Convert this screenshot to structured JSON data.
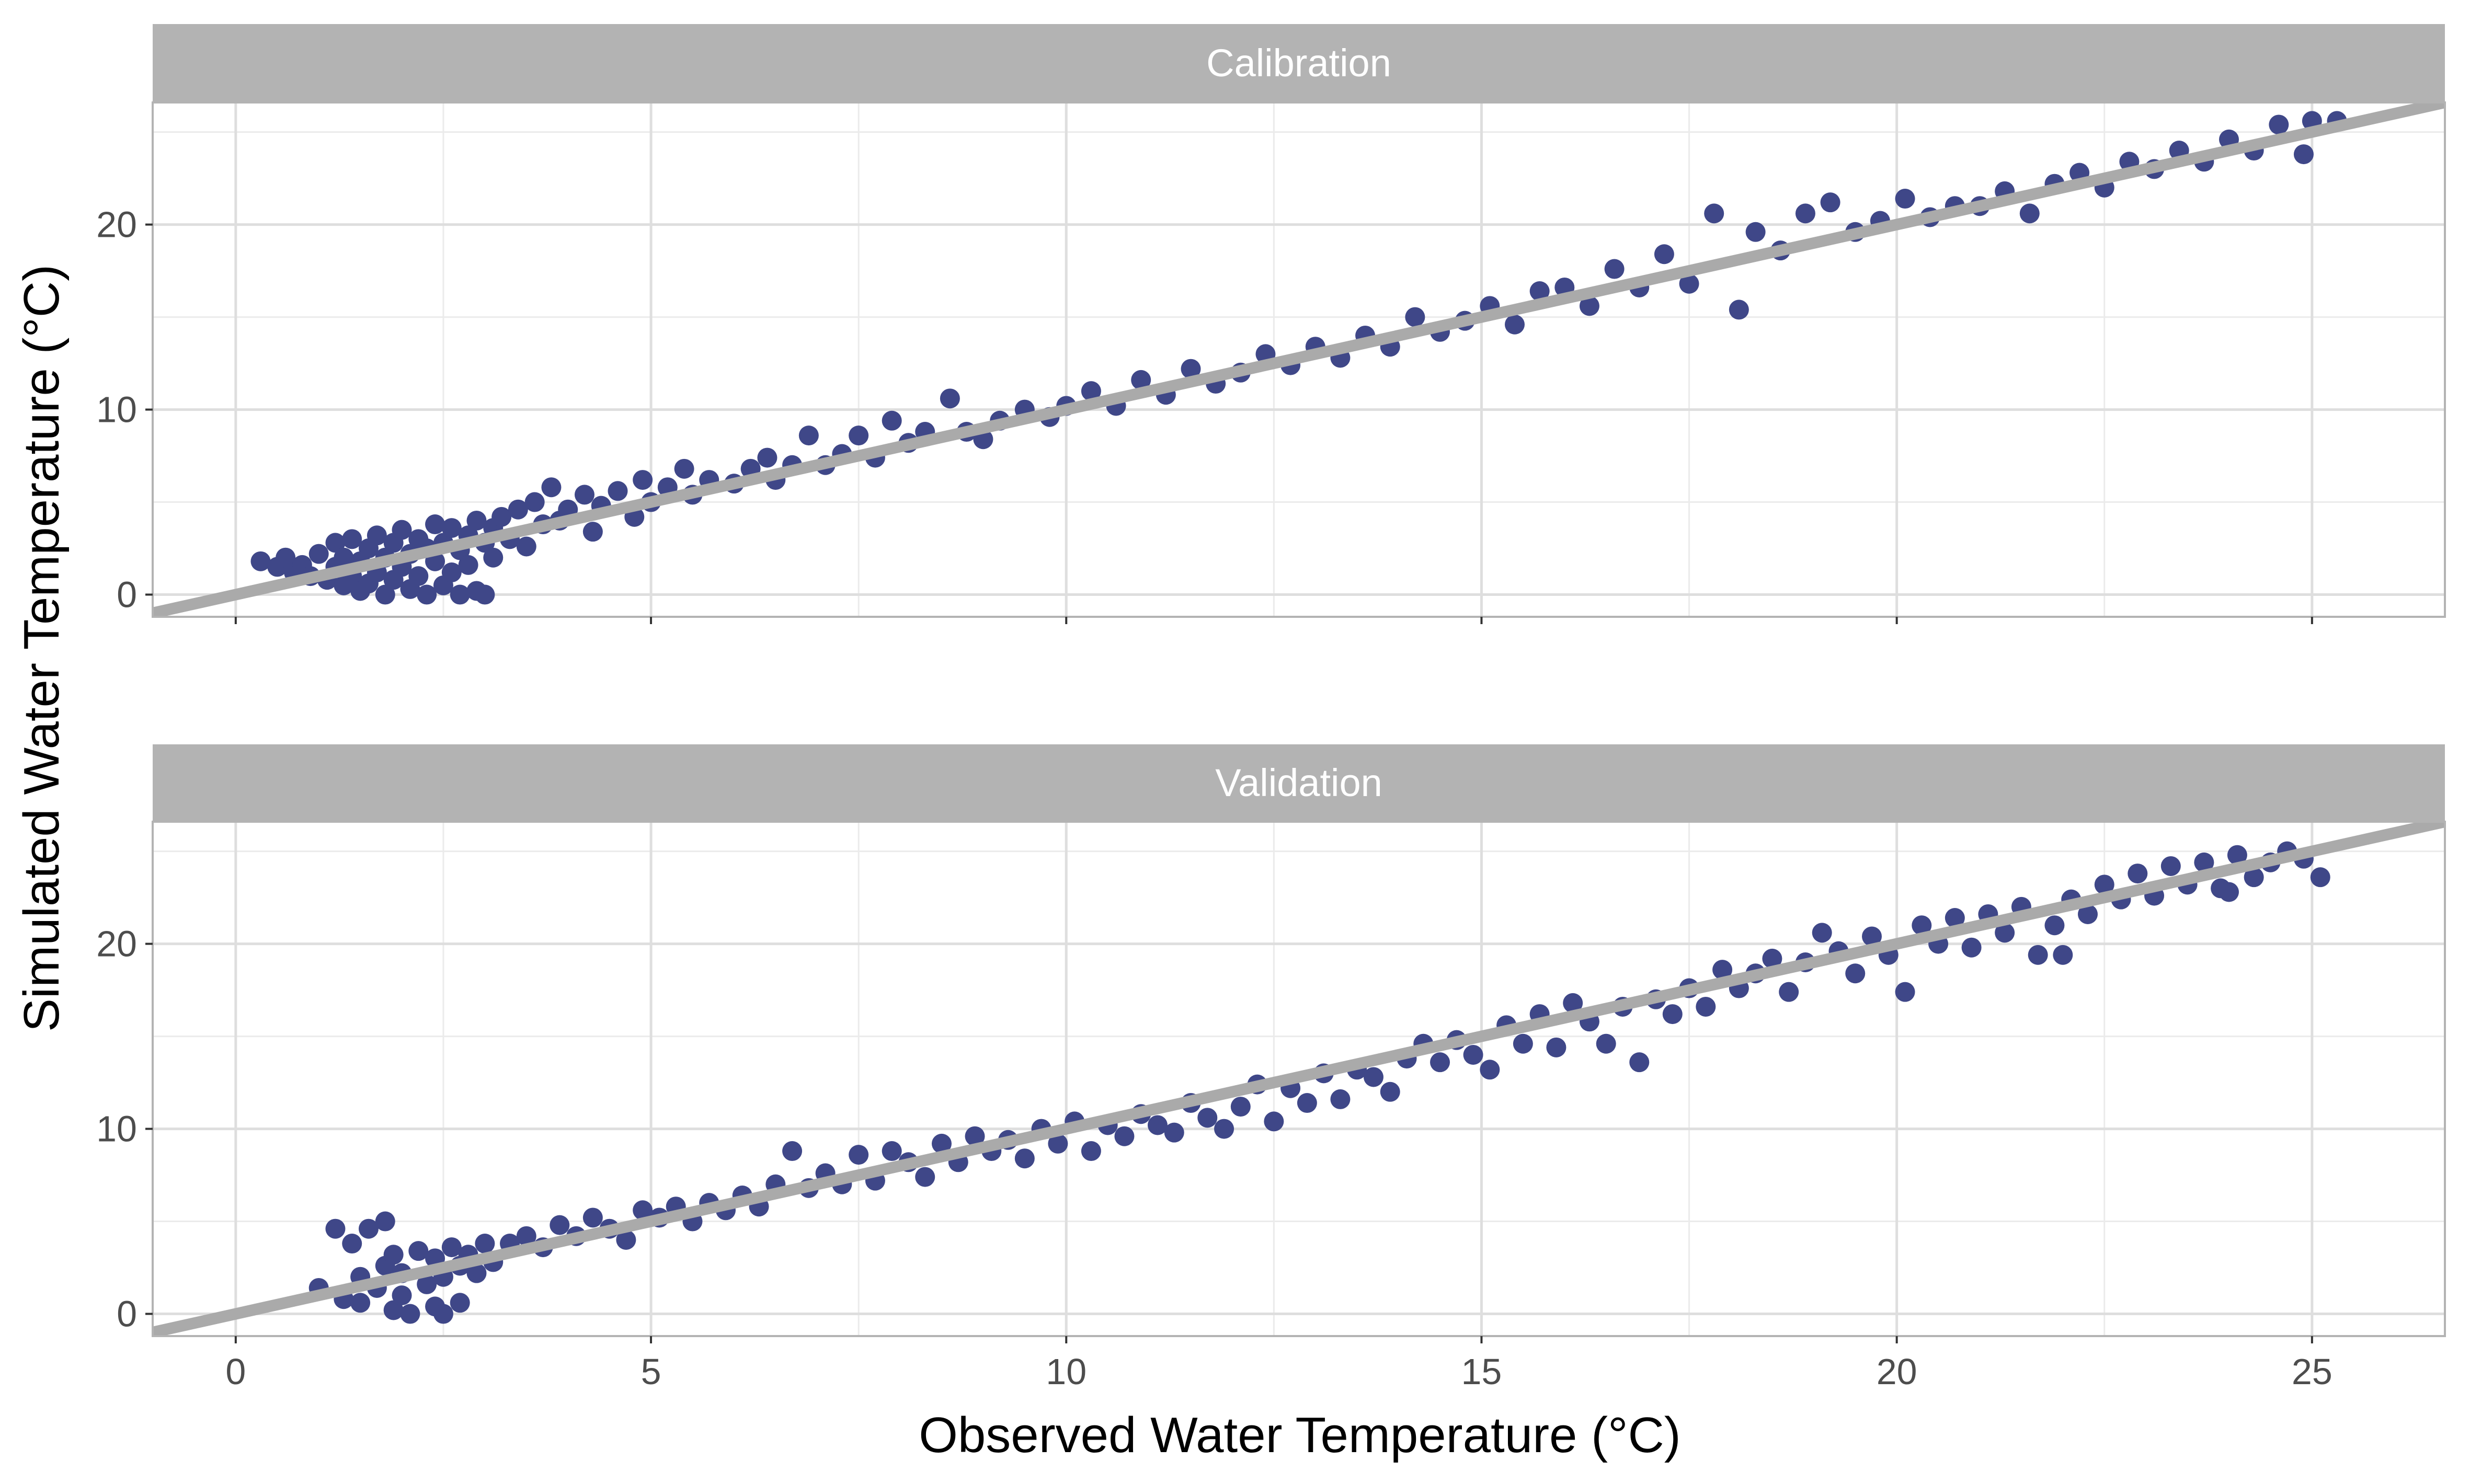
{
  "chart_data": {
    "type": "scatter",
    "xlabel": "Observed Water Temperature (°C)",
    "ylabel": "Simulated Water Temperature (°C)",
    "xlim": [
      -1,
      26.6
    ],
    "x_ticks": [
      0,
      5,
      10,
      15,
      20,
      25
    ],
    "y_ticks": [
      0,
      10,
      20
    ],
    "grid": true,
    "point_color": "#3F4788",
    "reference_line": {
      "slope": 1,
      "intercept": 0,
      "color": "#AAAAAA"
    },
    "strip_color": "#B3B3B3",
    "panels": [
      {
        "name": "Calibration",
        "ylim": [
          -1.2,
          26.6
        ],
        "points": [
          [
            0.3,
            1.8
          ],
          [
            0.5,
            1.5
          ],
          [
            0.6,
            2.0
          ],
          [
            0.7,
            1.2
          ],
          [
            0.8,
            1.6
          ],
          [
            0.9,
            1.0
          ],
          [
            1.0,
            2.2
          ],
          [
            1.1,
            0.8
          ],
          [
            1.2,
            2.8
          ],
          [
            1.2,
            1.5
          ],
          [
            1.3,
            0.5
          ],
          [
            1.3,
            2.0
          ],
          [
            1.4,
            1.0
          ],
          [
            1.4,
            3.0
          ],
          [
            1.5,
            0.2
          ],
          [
            1.5,
            1.8
          ],
          [
            1.6,
            2.5
          ],
          [
            1.6,
            0.6
          ],
          [
            1.7,
            3.2
          ],
          [
            1.7,
            1.2
          ],
          [
            1.8,
            0.0
          ],
          [
            1.8,
            2.0
          ],
          [
            1.9,
            2.8
          ],
          [
            1.9,
            0.8
          ],
          [
            2.0,
            1.5
          ],
          [
            2.0,
            3.5
          ],
          [
            2.1,
            0.3
          ],
          [
            2.1,
            2.2
          ],
          [
            2.2,
            1.0
          ],
          [
            2.2,
            3.0
          ],
          [
            2.3,
            0.0
          ],
          [
            2.3,
            2.5
          ],
          [
            2.4,
            1.8
          ],
          [
            2.4,
            3.8
          ],
          [
            2.5,
            0.5
          ],
          [
            2.5,
            2.8
          ],
          [
            2.6,
            1.2
          ],
          [
            2.6,
            3.6
          ],
          [
            2.7,
            0.0
          ],
          [
            2.7,
            2.4
          ],
          [
            2.8,
            3.2
          ],
          [
            2.8,
            1.6
          ],
          [
            2.9,
            4.0
          ],
          [
            2.9,
            0.2
          ],
          [
            3.0,
            2.8
          ],
          [
            3.0,
            0.0
          ],
          [
            3.1,
            3.6
          ],
          [
            3.1,
            2.0
          ],
          [
            3.2,
            4.2
          ],
          [
            3.3,
            3.0
          ],
          [
            3.4,
            4.6
          ],
          [
            3.5,
            2.6
          ],
          [
            3.6,
            5.0
          ],
          [
            3.7,
            3.8
          ],
          [
            3.8,
            5.8
          ],
          [
            3.9,
            4.0
          ],
          [
            4.0,
            4.6
          ],
          [
            4.2,
            5.4
          ],
          [
            4.3,
            3.4
          ],
          [
            4.4,
            4.8
          ],
          [
            4.6,
            5.6
          ],
          [
            4.8,
            4.2
          ],
          [
            4.9,
            6.2
          ],
          [
            5.0,
            5.0
          ],
          [
            5.2,
            5.8
          ],
          [
            5.4,
            6.8
          ],
          [
            5.5,
            5.4
          ],
          [
            5.7,
            6.2
          ],
          [
            6.0,
            6.0
          ],
          [
            6.2,
            6.8
          ],
          [
            6.4,
            7.4
          ],
          [
            6.5,
            6.2
          ],
          [
            6.7,
            7.0
          ],
          [
            6.9,
            8.6
          ],
          [
            7.1,
            7.0
          ],
          [
            7.3,
            7.6
          ],
          [
            7.5,
            8.6
          ],
          [
            7.7,
            7.4
          ],
          [
            7.9,
            9.4
          ],
          [
            8.1,
            8.2
          ],
          [
            8.3,
            8.8
          ],
          [
            8.6,
            10.6
          ],
          [
            8.8,
            8.8
          ],
          [
            9.0,
            8.4
          ],
          [
            9.2,
            9.4
          ],
          [
            9.5,
            10.0
          ],
          [
            9.8,
            9.6
          ],
          [
            10.0,
            10.2
          ],
          [
            10.3,
            11.0
          ],
          [
            10.6,
            10.2
          ],
          [
            10.9,
            11.6
          ],
          [
            11.2,
            10.8
          ],
          [
            11.5,
            12.2
          ],
          [
            11.8,
            11.4
          ],
          [
            12.1,
            12.0
          ],
          [
            12.4,
            13.0
          ],
          [
            12.7,
            12.4
          ],
          [
            13.0,
            13.4
          ],
          [
            13.3,
            12.8
          ],
          [
            13.6,
            14.0
          ],
          [
            13.9,
            13.4
          ],
          [
            14.2,
            15.0
          ],
          [
            14.5,
            14.2
          ],
          [
            14.8,
            14.8
          ],
          [
            15.1,
            15.6
          ],
          [
            15.4,
            14.6
          ],
          [
            15.7,
            16.4
          ],
          [
            16.0,
            16.6
          ],
          [
            16.3,
            15.6
          ],
          [
            16.6,
            17.6
          ],
          [
            16.9,
            16.6
          ],
          [
            17.2,
            18.4
          ],
          [
            17.5,
            16.8
          ],
          [
            17.8,
            20.6
          ],
          [
            18.1,
            15.4
          ],
          [
            18.3,
            19.6
          ],
          [
            18.6,
            18.6
          ],
          [
            18.9,
            20.6
          ],
          [
            19.2,
            21.2
          ],
          [
            19.5,
            19.6
          ],
          [
            19.8,
            20.2
          ],
          [
            20.1,
            21.4
          ],
          [
            20.4,
            20.4
          ],
          [
            20.7,
            21.0
          ],
          [
            21.0,
            21.0
          ],
          [
            21.3,
            21.8
          ],
          [
            21.6,
            20.6
          ],
          [
            21.9,
            22.2
          ],
          [
            22.2,
            22.8
          ],
          [
            22.5,
            22.0
          ],
          [
            22.8,
            23.4
          ],
          [
            23.1,
            23.0
          ],
          [
            23.4,
            24.0
          ],
          [
            23.7,
            23.4
          ],
          [
            24.0,
            24.6
          ],
          [
            24.3,
            24.0
          ],
          [
            24.6,
            25.4
          ],
          [
            24.9,
            23.8
          ],
          [
            25.0,
            25.6
          ],
          [
            25.3,
            25.6
          ]
        ]
      },
      {
        "name": "Validation",
        "ylim": [
          -1.2,
          26.6
        ],
        "points": [
          [
            1.0,
            1.4
          ],
          [
            1.2,
            4.6
          ],
          [
            1.3,
            0.8
          ],
          [
            1.4,
            3.8
          ],
          [
            1.5,
            2.0
          ],
          [
            1.5,
            0.6
          ],
          [
            1.6,
            4.6
          ],
          [
            1.7,
            1.4
          ],
          [
            1.8,
            2.6
          ],
          [
            1.8,
            5.0
          ],
          [
            1.9,
            0.2
          ],
          [
            1.9,
            3.2
          ],
          [
            2.0,
            1.0
          ],
          [
            2.0,
            2.2
          ],
          [
            2.1,
            0.0
          ],
          [
            2.2,
            3.4
          ],
          [
            2.3,
            1.6
          ],
          [
            2.4,
            0.4
          ],
          [
            2.4,
            3.0
          ],
          [
            2.5,
            2.0
          ],
          [
            2.5,
            0.0
          ],
          [
            2.6,
            3.6
          ],
          [
            2.7,
            2.6
          ],
          [
            2.7,
            0.6
          ],
          [
            2.8,
            3.2
          ],
          [
            2.9,
            2.2
          ],
          [
            3.0,
            3.8
          ],
          [
            3.1,
            2.8
          ],
          [
            3.3,
            3.8
          ],
          [
            3.5,
            4.2
          ],
          [
            3.7,
            3.6
          ],
          [
            3.9,
            4.8
          ],
          [
            4.1,
            4.2
          ],
          [
            4.3,
            5.2
          ],
          [
            4.5,
            4.6
          ],
          [
            4.7,
            4.0
          ],
          [
            4.9,
            5.6
          ],
          [
            5.1,
            5.2
          ],
          [
            5.3,
            5.8
          ],
          [
            5.5,
            5.0
          ],
          [
            5.7,
            6.0
          ],
          [
            5.9,
            5.6
          ],
          [
            6.1,
            6.4
          ],
          [
            6.3,
            5.8
          ],
          [
            6.5,
            7.0
          ],
          [
            6.7,
            8.8
          ],
          [
            6.9,
            6.8
          ],
          [
            7.1,
            7.6
          ],
          [
            7.3,
            7.0
          ],
          [
            7.5,
            8.6
          ],
          [
            7.7,
            7.2
          ],
          [
            7.9,
            8.8
          ],
          [
            8.1,
            8.2
          ],
          [
            8.3,
            7.4
          ],
          [
            8.5,
            9.2
          ],
          [
            8.7,
            8.2
          ],
          [
            8.9,
            9.6
          ],
          [
            9.1,
            8.8
          ],
          [
            9.3,
            9.4
          ],
          [
            9.5,
            8.4
          ],
          [
            9.7,
            10.0
          ],
          [
            9.9,
            9.2
          ],
          [
            10.1,
            10.4
          ],
          [
            10.3,
            8.8
          ],
          [
            10.5,
            10.2
          ],
          [
            10.7,
            9.6
          ],
          [
            10.9,
            10.8
          ],
          [
            11.1,
            10.2
          ],
          [
            11.3,
            9.8
          ],
          [
            11.5,
            11.4
          ],
          [
            11.7,
            10.6
          ],
          [
            11.9,
            10.0
          ],
          [
            12.1,
            11.2
          ],
          [
            12.3,
            12.4
          ],
          [
            12.5,
            10.4
          ],
          [
            12.7,
            12.2
          ],
          [
            12.9,
            11.4
          ],
          [
            13.1,
            13.0
          ],
          [
            13.3,
            11.6
          ],
          [
            13.5,
            13.2
          ],
          [
            13.7,
            12.8
          ],
          [
            13.9,
            12.0
          ],
          [
            14.1,
            13.8
          ],
          [
            14.3,
            14.6
          ],
          [
            14.5,
            13.6
          ],
          [
            14.7,
            14.8
          ],
          [
            14.9,
            14.0
          ],
          [
            15.1,
            13.2
          ],
          [
            15.3,
            15.6
          ],
          [
            15.5,
            14.6
          ],
          [
            15.7,
            16.2
          ],
          [
            15.9,
            14.4
          ],
          [
            16.1,
            16.8
          ],
          [
            16.3,
            15.8
          ],
          [
            16.5,
            14.6
          ],
          [
            16.7,
            16.6
          ],
          [
            16.9,
            13.6
          ],
          [
            17.1,
            17.0
          ],
          [
            17.3,
            16.2
          ],
          [
            17.5,
            17.6
          ],
          [
            17.7,
            16.6
          ],
          [
            17.9,
            18.6
          ],
          [
            18.1,
            17.6
          ],
          [
            18.3,
            18.4
          ],
          [
            18.5,
            19.2
          ],
          [
            18.7,
            17.4
          ],
          [
            18.9,
            19.0
          ],
          [
            19.1,
            20.6
          ],
          [
            19.3,
            19.6
          ],
          [
            19.5,
            18.4
          ],
          [
            19.7,
            20.4
          ],
          [
            19.9,
            19.4
          ],
          [
            20.1,
            17.4
          ],
          [
            20.3,
            21.0
          ],
          [
            20.5,
            20.0
          ],
          [
            20.7,
            21.4
          ],
          [
            20.9,
            19.8
          ],
          [
            21.1,
            21.6
          ],
          [
            21.3,
            20.6
          ],
          [
            21.5,
            22.0
          ],
          [
            21.7,
            19.4
          ],
          [
            21.9,
            21.0
          ],
          [
            22.1,
            22.4
          ],
          [
            22.3,
            21.6
          ],
          [
            22.5,
            23.2
          ],
          [
            22.7,
            22.4
          ],
          [
            22.9,
            23.8
          ],
          [
            23.1,
            22.6
          ],
          [
            23.3,
            24.2
          ],
          [
            23.5,
            23.2
          ],
          [
            23.7,
            24.4
          ],
          [
            23.9,
            23.0
          ],
          [
            24.1,
            24.8
          ],
          [
            24.3,
            23.6
          ],
          [
            24.5,
            24.4
          ],
          [
            24.7,
            25.0
          ],
          [
            24.9,
            24.6
          ],
          [
            25.1,
            23.6
          ],
          [
            24.0,
            22.8
          ],
          [
            22.0,
            19.4
          ]
        ]
      }
    ]
  }
}
